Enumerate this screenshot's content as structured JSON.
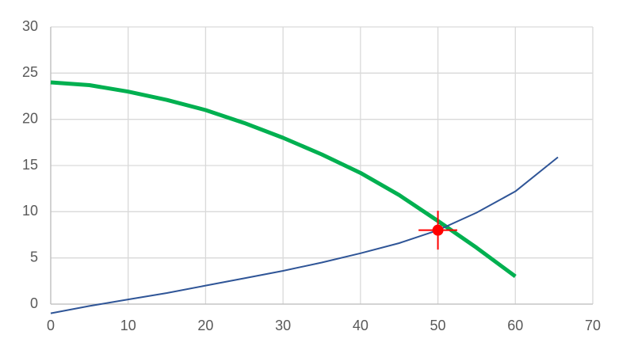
{
  "chart_data": {
    "type": "line",
    "xlim": [
      0,
      70
    ],
    "xticks": [
      0,
      10,
      20,
      30,
      40,
      50,
      60,
      70
    ],
    "ylim": [
      0,
      30
    ],
    "yticks": [
      0,
      5,
      10,
      15,
      20,
      25,
      30
    ],
    "grid": true,
    "series": [
      {
        "color": "#00b050",
        "x": [
          0,
          5,
          10,
          15,
          20,
          25,
          30,
          35,
          40,
          45,
          50,
          55,
          60
        ],
        "values": [
          24,
          23.7,
          23,
          22.1,
          21,
          19.6,
          18,
          16.2,
          14.2,
          11.8,
          9,
          6.1,
          3
        ]
      },
      {
        "color": "#2f5597",
        "x": [
          0,
          5,
          10,
          15,
          20,
          25,
          30,
          35,
          40,
          45,
          50,
          55,
          60,
          65.5
        ],
        "values": [
          -1,
          -0.2,
          0.5,
          1.2,
          2,
          2.8,
          3.6,
          4.5,
          5.5,
          6.6,
          8,
          9.9,
          12.2,
          15.9
        ]
      }
    ],
    "marker": {
      "x": 50,
      "y": 8,
      "xerr": 2.5,
      "yerr": 2.1,
      "color": "#ff0000"
    }
  }
}
